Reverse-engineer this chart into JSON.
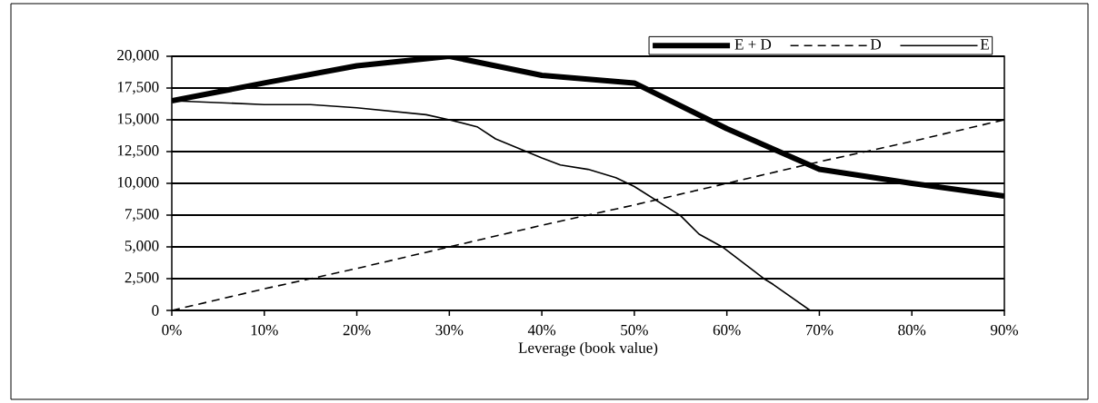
{
  "chart_data": {
    "type": "line",
    "xlabel": "Leverage (book value)",
    "x": [
      0,
      10,
      20,
      30,
      40,
      50,
      60,
      70,
      80,
      90
    ],
    "series": [
      {
        "name": "E + D",
        "color": "#000000",
        "values": [
          16500,
          17900,
          19250,
          20000,
          18500,
          17900,
          14300,
          11100,
          10000,
          9000
        ]
      },
      {
        "name": "D",
        "color": "#000000",
        "line_style": "dashed",
        "values": [
          0,
          1700,
          3300,
          5000,
          6700,
          8300,
          10000,
          11700,
          13300,
          15000
        ]
      },
      {
        "name": "E",
        "color": "#000000",
        "x": [
          0,
          10,
          15,
          20,
          27.5,
          30,
          33,
          35,
          40,
          42,
          45,
          48,
          50,
          55,
          57,
          59.5,
          64,
          65,
          69
        ],
        "values": [
          16500,
          16200,
          16200,
          15950,
          15400,
          15000,
          14450,
          13500,
          12000,
          11450,
          11100,
          10450,
          9750,
          7450,
          6000,
          5000,
          2500,
          2050,
          0
        ]
      }
    ],
    "xlim": [
      0,
      90
    ],
    "xticks": [
      {
        "value": 0,
        "label": "0%"
      },
      {
        "value": 10,
        "label": "10%"
      },
      {
        "value": 20,
        "label": "20%"
      },
      {
        "value": 30,
        "label": "30%"
      },
      {
        "value": 40,
        "label": "40%"
      },
      {
        "value": 50,
        "label": "50%"
      },
      {
        "value": 60,
        "label": "60%"
      },
      {
        "value": 70,
        "label": "70%"
      },
      {
        "value": 80,
        "label": "80%"
      },
      {
        "value": 90,
        "label": "90%"
      }
    ],
    "ylim": [
      0,
      20000
    ],
    "yticks": [
      0,
      {
        "value": 2500,
        "label": "2,500"
      },
      {
        "value": 5000,
        "label": "5,000"
      },
      {
        "value": 7500,
        "label": "7,500"
      },
      {
        "value": 10000,
        "label": "10,000"
      },
      {
        "value": 12500,
        "label": "12,500"
      },
      {
        "value": 15000,
        "label": "15,000"
      },
      {
        "value": 17500,
        "label": "17,500"
      },
      {
        "value": 20000,
        "label": "20,000"
      }
    ],
    "grid": "y",
    "legend": "top right",
    "marker": "none"
  }
}
